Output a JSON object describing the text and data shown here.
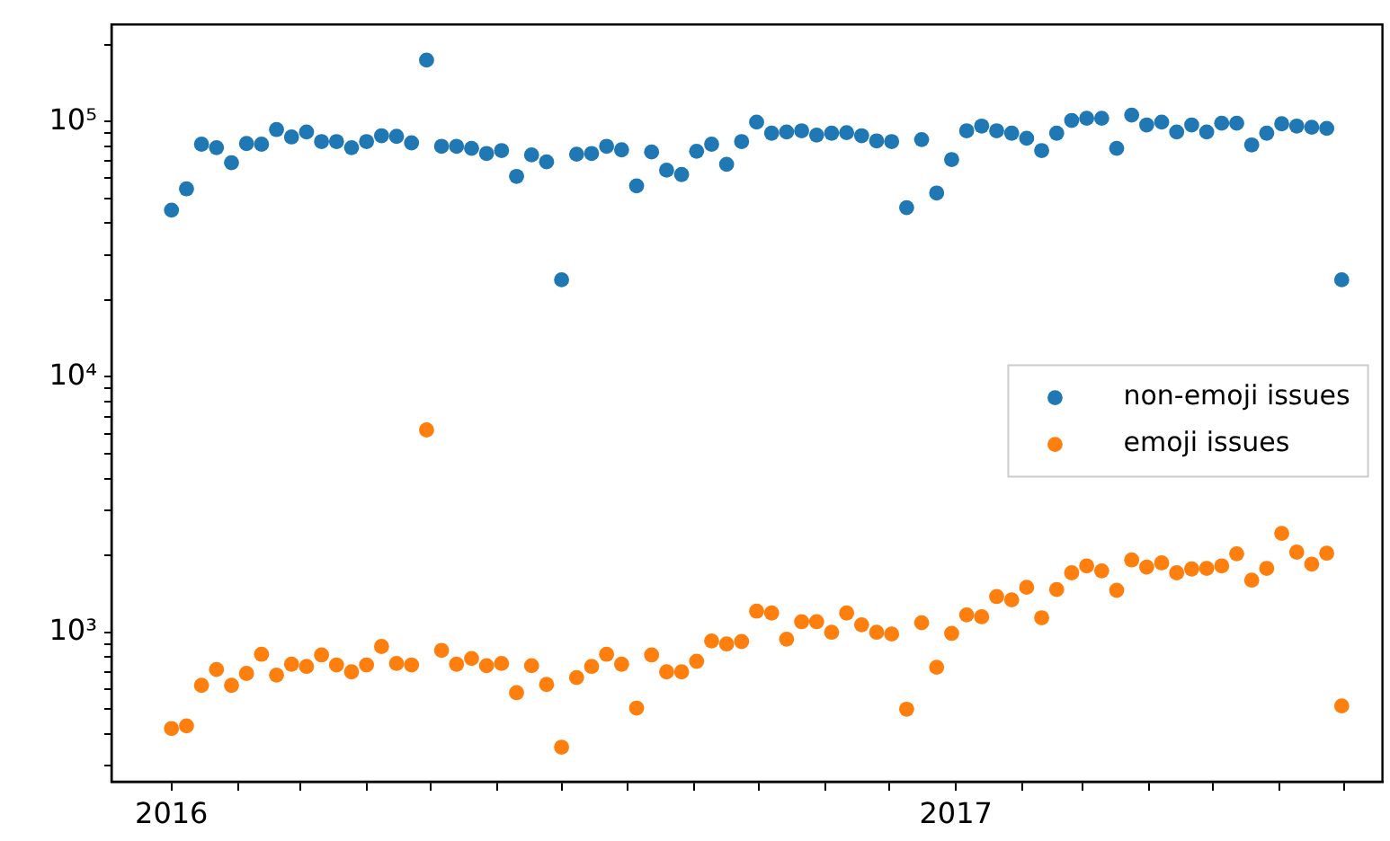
{
  "chart_data": {
    "type": "scatter",
    "log": "y",
    "grid": false,
    "legend": "right",
    "marker": "circle",
    "xlim": [
      "2015-12-04",
      "2017-07-19"
    ],
    "xticks": [
      {
        "value": "2016-01-01",
        "label": "2016"
      },
      {
        "value": "2016-02-01",
        "label": null
      },
      {
        "value": "2016-03-01",
        "label": null
      },
      {
        "value": "2016-04-01",
        "label": null
      },
      {
        "value": "2016-05-01",
        "label": null
      },
      {
        "value": "2016-06-01",
        "label": null
      },
      {
        "value": "2016-07-01",
        "label": null
      },
      {
        "value": "2016-08-01",
        "label": null
      },
      {
        "value": "2016-09-01",
        "label": null
      },
      {
        "value": "2016-10-01",
        "label": null
      },
      {
        "value": "2016-11-01",
        "label": null
      },
      {
        "value": "2016-12-01",
        "label": null
      },
      {
        "value": "2017-01-01",
        "label": "2017"
      },
      {
        "value": "2017-02-01",
        "label": null
      },
      {
        "value": "2017-03-01",
        "label": null
      },
      {
        "value": "2017-04-01",
        "label": null
      },
      {
        "value": "2017-05-01",
        "label": null
      },
      {
        "value": "2017-06-01",
        "label": null
      },
      {
        "value": "2017-07-01",
        "label": null
      }
    ],
    "ylim": [
      260,
      240000
    ],
    "yticks": [
      {
        "value": 300,
        "label": null
      },
      {
        "value": 400,
        "label": null
      },
      {
        "value": 500,
        "label": null
      },
      {
        "value": 600,
        "label": null
      },
      {
        "value": 700,
        "label": null
      },
      {
        "value": 800,
        "label": null
      },
      {
        "value": 900,
        "label": null
      },
      {
        "value": 1000,
        "label": "10³"
      },
      {
        "value": 2000,
        "label": null
      },
      {
        "value": 3000,
        "label": null
      },
      {
        "value": 4000,
        "label": null
      },
      {
        "value": 5000,
        "label": null
      },
      {
        "value": 6000,
        "label": null
      },
      {
        "value": 7000,
        "label": null
      },
      {
        "value": 8000,
        "label": null
      },
      {
        "value": 9000,
        "label": null
      },
      {
        "value": 10000,
        "label": "10⁴"
      },
      {
        "value": 20000,
        "label": null
      },
      {
        "value": 30000,
        "label": null
      },
      {
        "value": 40000,
        "label": null
      },
      {
        "value": 50000,
        "label": null
      },
      {
        "value": 60000,
        "label": null
      },
      {
        "value": 70000,
        "label": null
      },
      {
        "value": 80000,
        "label": null
      },
      {
        "value": 90000,
        "label": null
      },
      {
        "value": 100000,
        "label": "10⁵"
      },
      {
        "value": 200000,
        "label": null
      }
    ],
    "x": [
      "2016-01-01",
      "2016-01-08",
      "2016-01-15",
      "2016-01-22",
      "2016-01-29",
      "2016-02-05",
      "2016-02-12",
      "2016-02-19",
      "2016-02-26",
      "2016-03-04",
      "2016-03-11",
      "2016-03-18",
      "2016-03-25",
      "2016-04-01",
      "2016-04-08",
      "2016-04-15",
      "2016-04-22",
      "2016-04-29",
      "2016-05-06",
      "2016-05-13",
      "2016-05-20",
      "2016-05-27",
      "2016-06-03",
      "2016-06-10",
      "2016-06-17",
      "2016-06-24",
      "2016-07-01",
      "2016-07-08",
      "2016-07-15",
      "2016-07-22",
      "2016-07-29",
      "2016-08-05",
      "2016-08-12",
      "2016-08-19",
      "2016-08-26",
      "2016-09-02",
      "2016-09-09",
      "2016-09-16",
      "2016-09-23",
      "2016-09-30",
      "2016-10-07",
      "2016-10-14",
      "2016-10-21",
      "2016-10-28",
      "2016-11-04",
      "2016-11-11",
      "2016-11-18",
      "2016-11-25",
      "2016-12-02",
      "2016-12-09",
      "2016-12-16",
      "2016-12-23",
      "2016-12-30",
      "2017-01-06",
      "2017-01-13",
      "2017-01-20",
      "2017-01-27",
      "2017-02-03",
      "2017-02-10",
      "2017-02-17",
      "2017-02-24",
      "2017-03-03",
      "2017-03-10",
      "2017-03-17",
      "2017-03-24",
      "2017-03-31",
      "2017-04-07",
      "2017-04-14",
      "2017-04-21",
      "2017-04-28",
      "2017-05-05",
      "2017-05-12",
      "2017-05-19",
      "2017-05-26",
      "2017-06-02",
      "2017-06-09",
      "2017-06-16",
      "2017-06-23",
      "2017-06-30"
    ],
    "series": [
      {
        "name": "non-emoji issues",
        "color": "#1f77b4",
        "values": [
          45000,
          54500,
          81500,
          79000,
          69000,
          82000,
          81500,
          93000,
          87000,
          91000,
          83500,
          83500,
          79000,
          83500,
          88000,
          87500,
          82500,
          174000,
          80000,
          80000,
          78500,
          75000,
          77000,
          61000,
          74000,
          69500,
          24000,
          74500,
          75000,
          80000,
          77500,
          56000,
          76000,
          64500,
          62000,
          76500,
          81500,
          68000,
          83500,
          99500,
          90000,
          91000,
          92000,
          88500,
          90000,
          90500,
          88000,
          84000,
          83500,
          46000,
          85000,
          52500,
          71000,
          92000,
          96000,
          92000,
          90000,
          86000,
          77000,
          90000,
          101000,
          103000,
          103000,
          78500,
          106000,
          97000,
          99500,
          91000,
          97000,
          91000,
          98500,
          98500,
          81000,
          90000,
          98000,
          96000,
          95000,
          94000,
          24000
        ]
      },
      {
        "name": "emoji issues",
        "color": "#ff7f0e",
        "values": [
          420,
          430,
          620,
          715,
          620,
          690,
          820,
          680,
          750,
          735,
          815,
          745,
          700,
          745,
          880,
          755,
          745,
          6200,
          850,
          750,
          790,
          740,
          755,
          580,
          740,
          625,
          355,
          665,
          735,
          820,
          750,
          505,
          815,
          700,
          700,
          770,
          925,
          900,
          920,
          1210,
          1190,
          940,
          1100,
          1100,
          1000,
          1190,
          1070,
          1000,
          985,
          500,
          1090,
          730,
          990,
          1170,
          1150,
          1380,
          1340,
          1500,
          1140,
          1470,
          1710,
          1820,
          1740,
          1460,
          1920,
          1800,
          1870,
          1710,
          1770,
          1780,
          1820,
          2030,
          1600,
          1780,
          2440,
          2060,
          1850,
          2040,
          515
        ]
      }
    ]
  }
}
